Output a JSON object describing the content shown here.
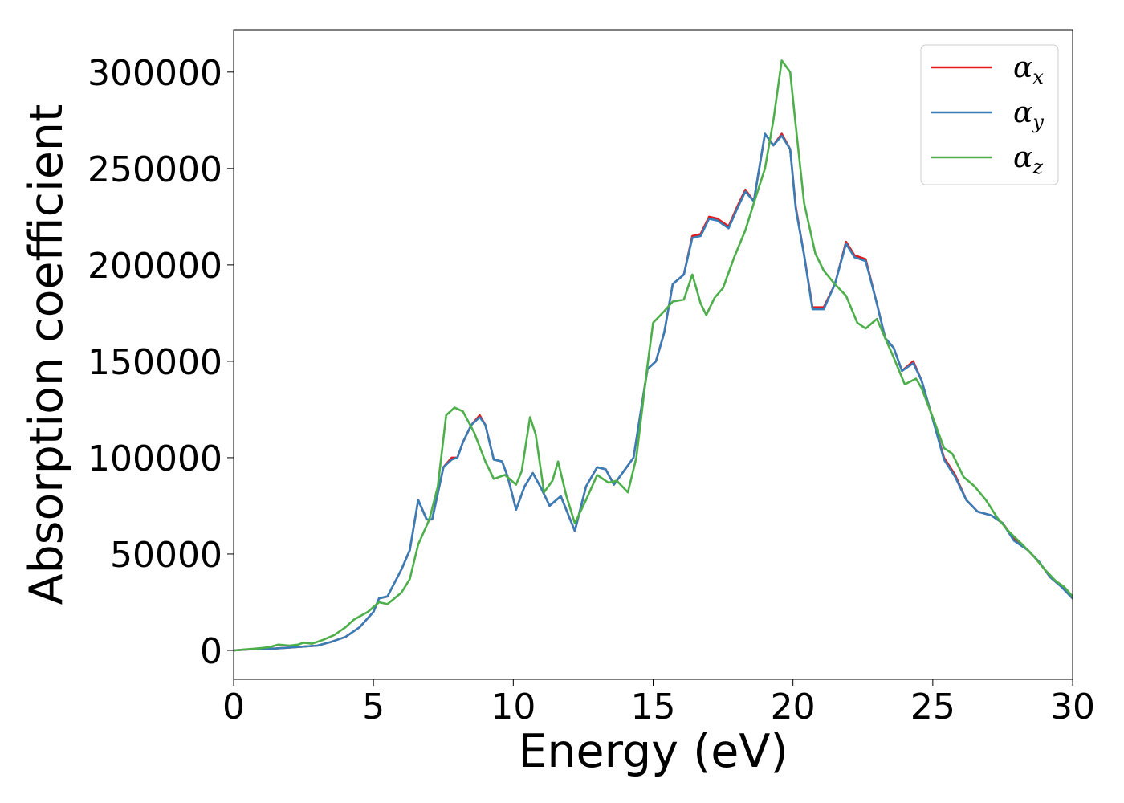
{
  "chart_data": {
    "type": "line",
    "title": "",
    "xlabel": "Energy (eV)",
    "ylabel": "Absorption coefficient",
    "xlim": [
      0,
      30
    ],
    "ylim": [
      -15000,
      322000
    ],
    "xticks": [
      0,
      5,
      10,
      15,
      20,
      25,
      30
    ],
    "yticks": [
      0,
      50000,
      100000,
      150000,
      200000,
      250000,
      300000
    ],
    "grid": false,
    "legend": "top-right",
    "series": [
      {
        "name": "α_x",
        "legend_base": "α",
        "legend_sub": "x",
        "color": "#e41a1c",
        "points": [
          [
            0,
            0
          ],
          [
            0.5,
            500
          ],
          [
            1,
            800
          ],
          [
            1.5,
            1000
          ],
          [
            2,
            1500
          ],
          [
            2.5,
            2000
          ],
          [
            3,
            2500
          ],
          [
            3.5,
            4500
          ],
          [
            4,
            7000
          ],
          [
            4.5,
            12000
          ],
          [
            5,
            20000
          ],
          [
            5.2,
            27000
          ],
          [
            5.5,
            28000
          ],
          [
            6,
            42000
          ],
          [
            6.3,
            52000
          ],
          [
            6.6,
            78000
          ],
          [
            6.9,
            68000
          ],
          [
            7.1,
            68000
          ],
          [
            7.5,
            95000
          ],
          [
            7.8,
            100000
          ],
          [
            8,
            100000
          ],
          [
            8.2,
            108000
          ],
          [
            8.5,
            117000
          ],
          [
            8.8,
            122000
          ],
          [
            9,
            117000
          ],
          [
            9.3,
            99000
          ],
          [
            9.6,
            98000
          ],
          [
            9.8,
            90000
          ],
          [
            10.1,
            73000
          ],
          [
            10.4,
            85000
          ],
          [
            10.7,
            92000
          ],
          [
            11,
            84000
          ],
          [
            11.3,
            75000
          ],
          [
            11.7,
            80000
          ],
          [
            12.2,
            62000
          ],
          [
            12.6,
            85000
          ],
          [
            13,
            95000
          ],
          [
            13.3,
            94000
          ],
          [
            13.6,
            86000
          ],
          [
            14,
            94000
          ],
          [
            14.3,
            100000
          ],
          [
            14.8,
            146000
          ],
          [
            15.1,
            150000
          ],
          [
            15.4,
            165000
          ],
          [
            15.7,
            190000
          ],
          [
            16.1,
            195000
          ],
          [
            16.4,
            215000
          ],
          [
            16.7,
            216000
          ],
          [
            17,
            225000
          ],
          [
            17.3,
            224000
          ],
          [
            17.7,
            220000
          ],
          [
            18,
            230000
          ],
          [
            18.3,
            239000
          ],
          [
            18.6,
            233000
          ],
          [
            19,
            268000
          ],
          [
            19.3,
            262000
          ],
          [
            19.6,
            268000
          ],
          [
            19.9,
            260000
          ],
          [
            20.1,
            230000
          ],
          [
            20.4,
            205000
          ],
          [
            20.7,
            178000
          ],
          [
            21.1,
            178000
          ],
          [
            21.5,
            190000
          ],
          [
            21.9,
            212000
          ],
          [
            22.2,
            205000
          ],
          [
            22.6,
            203000
          ],
          [
            23,
            180000
          ],
          [
            23.3,
            162000
          ],
          [
            23.6,
            157000
          ],
          [
            23.9,
            145000
          ],
          [
            24.3,
            150000
          ],
          [
            24.6,
            140000
          ],
          [
            25,
            120000
          ],
          [
            25.4,
            100000
          ],
          [
            25.8,
            91000
          ],
          [
            26.2,
            78000
          ],
          [
            26.6,
            72000
          ],
          [
            27.1,
            70000
          ],
          [
            27.5,
            66000
          ],
          [
            27.9,
            58000
          ],
          [
            28.4,
            52000
          ],
          [
            28.8,
            46000
          ],
          [
            29.2,
            38000
          ],
          [
            29.6,
            33000
          ],
          [
            30,
            27000
          ]
        ]
      },
      {
        "name": "α_y",
        "legend_base": "α",
        "legend_sub": "y",
        "color": "#377eb8",
        "points": [
          [
            0,
            0
          ],
          [
            0.5,
            500
          ],
          [
            1,
            800
          ],
          [
            1.5,
            1000
          ],
          [
            2,
            1500
          ],
          [
            2.5,
            2000
          ],
          [
            3,
            2500
          ],
          [
            3.5,
            4500
          ],
          [
            4,
            7000
          ],
          [
            4.5,
            12000
          ],
          [
            5,
            20000
          ],
          [
            5.2,
            27000
          ],
          [
            5.5,
            28000
          ],
          [
            6,
            42000
          ],
          [
            6.3,
            52000
          ],
          [
            6.6,
            78000
          ],
          [
            6.9,
            68000
          ],
          [
            7.1,
            68000
          ],
          [
            7.5,
            95000
          ],
          [
            7.8,
            99000
          ],
          [
            8,
            100000
          ],
          [
            8.2,
            108000
          ],
          [
            8.5,
            117000
          ],
          [
            8.8,
            121000
          ],
          [
            9,
            117000
          ],
          [
            9.3,
            99000
          ],
          [
            9.6,
            98000
          ],
          [
            9.8,
            90000
          ],
          [
            10.1,
            73000
          ],
          [
            10.4,
            85000
          ],
          [
            10.7,
            92000
          ],
          [
            11,
            84000
          ],
          [
            11.3,
            75000
          ],
          [
            11.7,
            80000
          ],
          [
            12.2,
            62000
          ],
          [
            12.6,
            85000
          ],
          [
            13,
            95000
          ],
          [
            13.3,
            94000
          ],
          [
            13.6,
            86000
          ],
          [
            14,
            94000
          ],
          [
            14.3,
            100000
          ],
          [
            14.8,
            146000
          ],
          [
            15.1,
            150000
          ],
          [
            15.4,
            165000
          ],
          [
            15.7,
            190000
          ],
          [
            16.1,
            195000
          ],
          [
            16.4,
            214000
          ],
          [
            16.7,
            215000
          ],
          [
            17,
            224000
          ],
          [
            17.3,
            223000
          ],
          [
            17.7,
            219000
          ],
          [
            18,
            229000
          ],
          [
            18.3,
            238000
          ],
          [
            18.6,
            233000
          ],
          [
            19,
            268000
          ],
          [
            19.3,
            262000
          ],
          [
            19.6,
            267000
          ],
          [
            19.9,
            260000
          ],
          [
            20.1,
            229000
          ],
          [
            20.4,
            205000
          ],
          [
            20.7,
            177000
          ],
          [
            21.1,
            177000
          ],
          [
            21.5,
            190000
          ],
          [
            21.9,
            211000
          ],
          [
            22.2,
            204000
          ],
          [
            22.6,
            202000
          ],
          [
            23,
            180000
          ],
          [
            23.3,
            162000
          ],
          [
            23.6,
            157000
          ],
          [
            23.9,
            145000
          ],
          [
            24.3,
            149000
          ],
          [
            24.6,
            140000
          ],
          [
            25,
            120000
          ],
          [
            25.4,
            99000
          ],
          [
            25.8,
            90000
          ],
          [
            26.2,
            78000
          ],
          [
            26.6,
            72000
          ],
          [
            27.1,
            70000
          ],
          [
            27.5,
            66000
          ],
          [
            27.9,
            57000
          ],
          [
            28.4,
            52000
          ],
          [
            28.8,
            46000
          ],
          [
            29.2,
            38000
          ],
          [
            29.6,
            33000
          ],
          [
            30,
            27000
          ]
        ]
      },
      {
        "name": "α_z",
        "legend_base": "α",
        "legend_sub": "z",
        "color": "#4daf4a",
        "points": [
          [
            0,
            0
          ],
          [
            0.5,
            600
          ],
          [
            1,
            1200
          ],
          [
            1.3,
            1800
          ],
          [
            1.6,
            3000
          ],
          [
            2,
            2500
          ],
          [
            2.3,
            3000
          ],
          [
            2.5,
            4000
          ],
          [
            2.8,
            3500
          ],
          [
            3.2,
            5500
          ],
          [
            3.6,
            8000
          ],
          [
            4,
            12000
          ],
          [
            4.3,
            16000
          ],
          [
            4.8,
            20000
          ],
          [
            5.2,
            25000
          ],
          [
            5.5,
            24000
          ],
          [
            6,
            30000
          ],
          [
            6.3,
            37000
          ],
          [
            6.6,
            55000
          ],
          [
            7,
            68000
          ],
          [
            7.3,
            85000
          ],
          [
            7.6,
            122000
          ],
          [
            7.9,
            126000
          ],
          [
            8.2,
            124000
          ],
          [
            8.6,
            113000
          ],
          [
            9,
            98000
          ],
          [
            9.3,
            89000
          ],
          [
            9.7,
            91000
          ],
          [
            10.1,
            86000
          ],
          [
            10.3,
            93000
          ],
          [
            10.6,
            121000
          ],
          [
            10.8,
            112000
          ],
          [
            11.1,
            82000
          ],
          [
            11.4,
            88000
          ],
          [
            11.6,
            98000
          ],
          [
            11.9,
            80000
          ],
          [
            12.2,
            66000
          ],
          [
            12.6,
            78000
          ],
          [
            13,
            91000
          ],
          [
            13.4,
            87000
          ],
          [
            13.7,
            88000
          ],
          [
            14.1,
            82000
          ],
          [
            14.4,
            100000
          ],
          [
            14.8,
            148000
          ],
          [
            15,
            170000
          ],
          [
            15.4,
            176000
          ],
          [
            15.7,
            181000
          ],
          [
            16.1,
            182000
          ],
          [
            16.4,
            195000
          ],
          [
            16.7,
            180000
          ],
          [
            16.9,
            174000
          ],
          [
            17.2,
            183000
          ],
          [
            17.5,
            188000
          ],
          [
            17.9,
            204000
          ],
          [
            18.3,
            218000
          ],
          [
            18.6,
            232000
          ],
          [
            19,
            250000
          ],
          [
            19.3,
            275000
          ],
          [
            19.6,
            306000
          ],
          [
            19.9,
            300000
          ],
          [
            20.1,
            272000
          ],
          [
            20.4,
            232000
          ],
          [
            20.8,
            206000
          ],
          [
            21.1,
            197000
          ],
          [
            21.5,
            190000
          ],
          [
            21.9,
            184000
          ],
          [
            22.3,
            170000
          ],
          [
            22.6,
            167000
          ],
          [
            23,
            172000
          ],
          [
            23.3,
            162000
          ],
          [
            23.6,
            152000
          ],
          [
            24,
            138000
          ],
          [
            24.4,
            141000
          ],
          [
            24.6,
            136000
          ],
          [
            25,
            121000
          ],
          [
            25.4,
            105000
          ],
          [
            25.7,
            102000
          ],
          [
            26.1,
            90000
          ],
          [
            26.5,
            85000
          ],
          [
            26.9,
            78000
          ],
          [
            27.3,
            69000
          ],
          [
            27.7,
            62000
          ],
          [
            28.2,
            55000
          ],
          [
            28.6,
            49000
          ],
          [
            29,
            42000
          ],
          [
            29.4,
            36000
          ],
          [
            29.7,
            33000
          ],
          [
            30,
            28000
          ]
        ]
      }
    ]
  }
}
